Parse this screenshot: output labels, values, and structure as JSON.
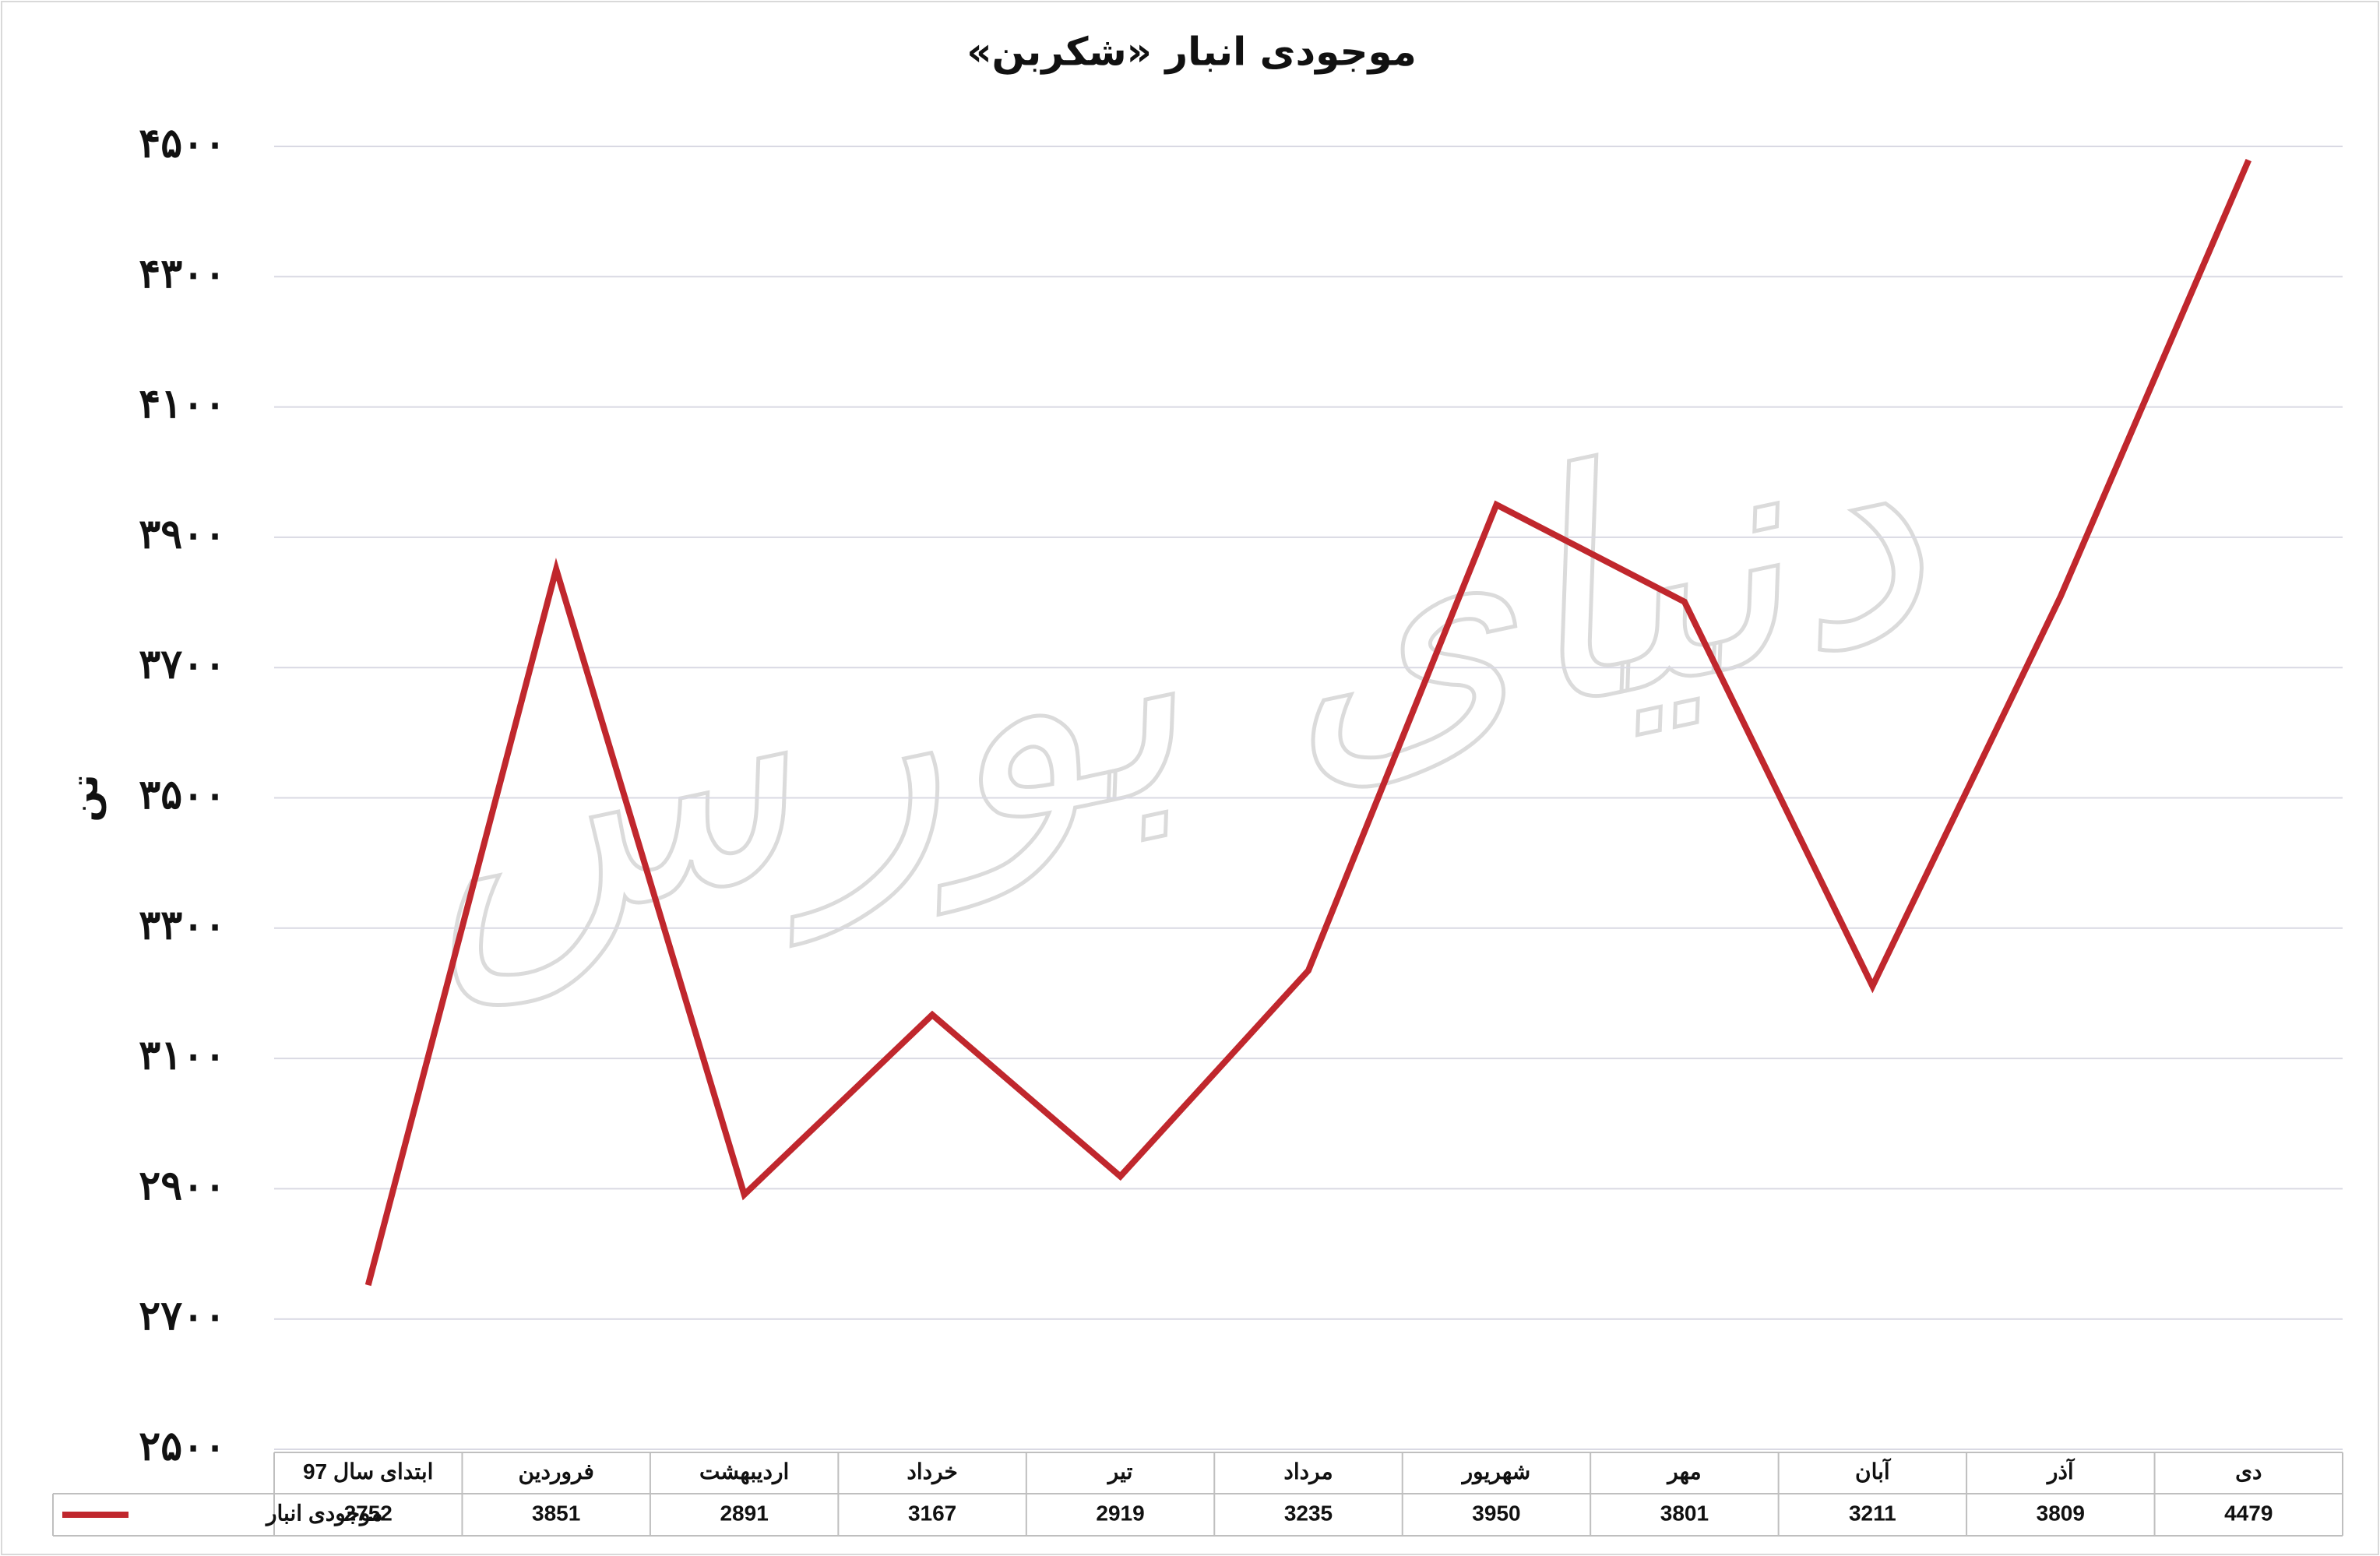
{
  "chart_data": {
    "type": "line",
    "title": "موجودی انبار «شکربن»",
    "y_label": "تن",
    "watermark": "دنیای بورس",
    "categories": [
      "ابتدای سال 97",
      "فروردین",
      "اردیبهشت",
      "خرداد",
      "تیر",
      "مرداد",
      "شهریور",
      "مهر",
      "آبان",
      "آذر",
      "دی"
    ],
    "series": [
      {
        "name": "موجودی انبار",
        "color": "#c0272d",
        "values": [
          2752,
          3851,
          2891,
          3167,
          2919,
          3235,
          3950,
          3801,
          3211,
          3809,
          4479
        ]
      }
    ],
    "ylim": [
      2500,
      4500
    ],
    "yticks": [
      {
        "value": 2500,
        "label": "۲۵۰۰"
      },
      {
        "value": 2700,
        "label": "۲۷۰۰"
      },
      {
        "value": 2900,
        "label": "۲۹۰۰"
      },
      {
        "value": 3100,
        "label": "۳۱۰۰"
      },
      {
        "value": 3300,
        "label": "۳۳۰۰"
      },
      {
        "value": 3500,
        "label": "۳۵۰۰"
      },
      {
        "value": 3700,
        "label": "۳۷۰۰"
      },
      {
        "value": 3900,
        "label": "۳۹۰۰"
      },
      {
        "value": 4100,
        "label": "۴۱۰۰"
      },
      {
        "value": 4300,
        "label": "۴۳۰۰"
      },
      {
        "value": 4500,
        "label": "۴۵۰۰"
      }
    ],
    "grid": true
  }
}
